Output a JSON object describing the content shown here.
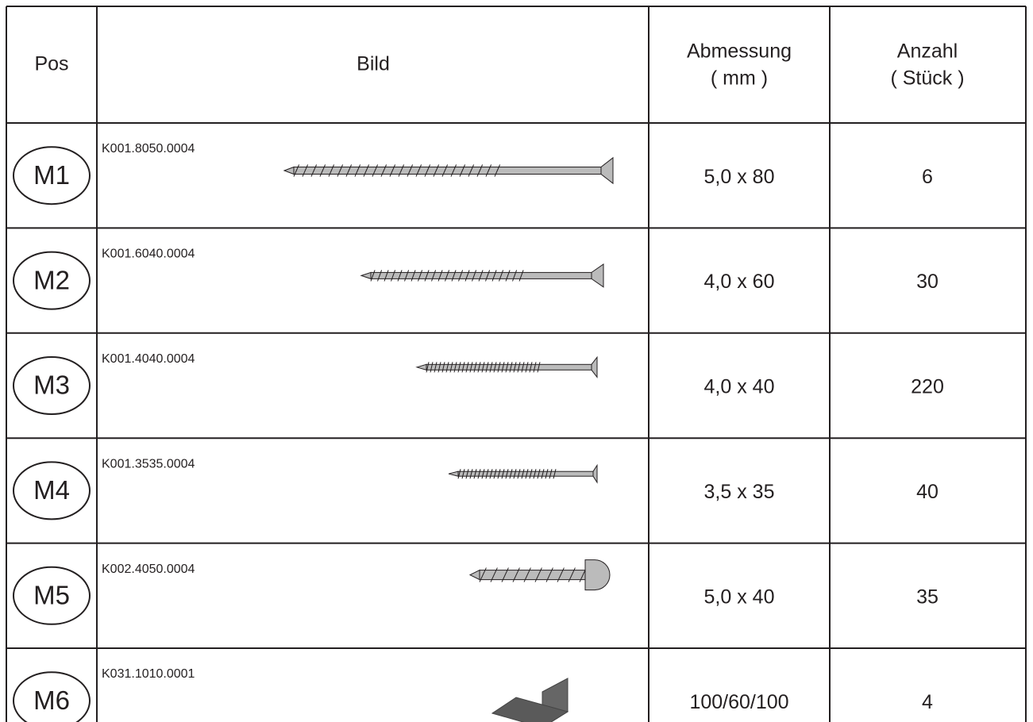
{
  "header": {
    "pos": "Pos",
    "image": "Bild",
    "dimension": [
      "Abmessung",
      "( mm )"
    ],
    "count": [
      "Anzahl",
      "( Stück )"
    ]
  },
  "rows": [
    {
      "pos": "M1",
      "code": "K001.8050.0004",
      "dimension": "5,0 x 80",
      "count": "6"
    },
    {
      "pos": "M2",
      "code": "K001.6040.0004",
      "dimension": "4,0 x 60",
      "count": "30"
    },
    {
      "pos": "M3",
      "code": "K001.4040.0004",
      "dimension": "4,0 x 40",
      "count": "220"
    },
    {
      "pos": "M4",
      "code": "K001.3535.0004",
      "dimension": "3,5 x 35",
      "count": "40"
    },
    {
      "pos": "M5",
      "code": "K002.4050.0004",
      "dimension": "5,0 x 40",
      "count": "35"
    },
    {
      "pos": "M6",
      "code": "K031.1010.0001",
      "dimension": "100/60/100",
      "count": "4"
    }
  ]
}
